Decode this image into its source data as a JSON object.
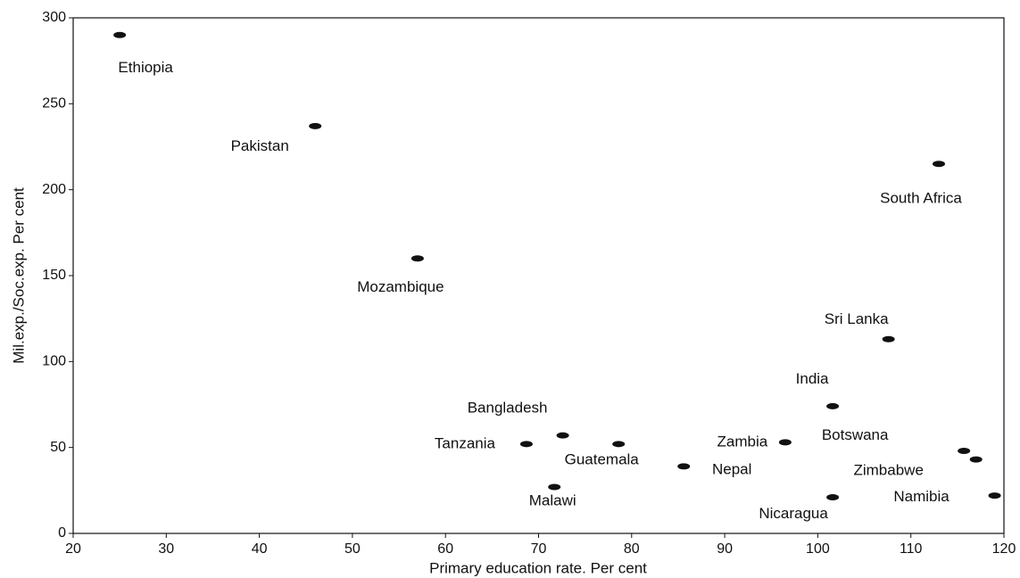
{
  "chart_data": {
    "type": "scatter",
    "x_label": "Primary education rate.  Per cent",
    "y_label": "Mil.exp./Soc.exp.  Per cent",
    "xlim": [
      20,
      120
    ],
    "xticks": [
      20,
      30,
      40,
      50,
      60,
      70,
      80,
      90,
      100,
      110,
      120
    ],
    "ylim": [
      0,
      300
    ],
    "yticks": [
      0,
      50,
      100,
      150,
      200,
      250,
      300
    ],
    "color": "#111111",
    "series": [
      {
        "name": null,
        "labels": [
          "Ethiopia",
          "Pakistan",
          "South Africa",
          "Mozambique",
          "Sri Lanka",
          "India",
          "Bangladesh",
          "Tanzania",
          "Guatemala",
          "Malawi",
          "Nepal",
          "Zambia",
          "Nicaragua",
          "Botswana",
          "Zimbabwe",
          "Namibia"
        ],
        "x": [
          25,
          46,
          113,
          57,
          107.6,
          101.6,
          72.6,
          68.7,
          78.6,
          71.7,
          85.6,
          96.5,
          101.6,
          115.7,
          117,
          119
        ],
        "values": [
          290,
          237,
          215,
          160,
          113,
          74,
          57,
          52,
          52,
          27,
          39,
          53,
          21,
          48,
          43,
          22
        ]
      }
    ]
  }
}
